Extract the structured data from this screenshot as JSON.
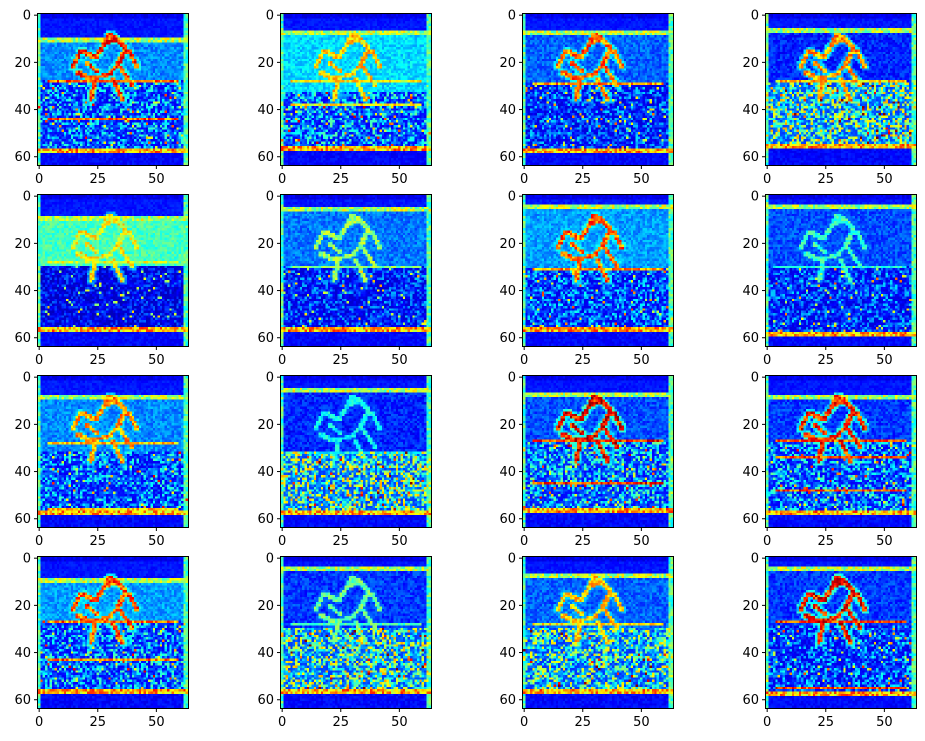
{
  "chart_data": {
    "type": "heatmap",
    "description_grid": {
      "rows": 4,
      "cols": 4
    },
    "image_shape": [
      64,
      64
    ],
    "colormap": "jet",
    "grid": false,
    "xlim": [
      0,
      63
    ],
    "ylim": [
      63,
      0
    ],
    "xticks": [
      0,
      25,
      50
    ],
    "yticks": [
      0,
      20,
      40,
      60
    ],
    "xtick_labels": [
      "0",
      "25",
      "50"
    ],
    "ytick_labels": [
      "0",
      "20",
      "40",
      "60"
    ],
    "panels": [
      {
        "id": 1,
        "variant": 0,
        "horizon": 28,
        "seed": 11
      },
      {
        "id": 2,
        "variant": 1,
        "horizon": 33,
        "seed": 22
      },
      {
        "id": 3,
        "variant": 2,
        "horizon": 29,
        "seed": 33
      },
      {
        "id": 4,
        "variant": 3,
        "horizon": 29,
        "seed": 44
      },
      {
        "id": 5,
        "variant": 4,
        "horizon": 30,
        "seed": 55
      },
      {
        "id": 6,
        "variant": 5,
        "horizon": 30,
        "seed": 66
      },
      {
        "id": 7,
        "variant": 6,
        "horizon": 31,
        "seed": 77
      },
      {
        "id": 8,
        "variant": 7,
        "horizon": 30,
        "seed": 88
      },
      {
        "id": 9,
        "variant": 8,
        "horizon": 32,
        "seed": 99
      },
      {
        "id": 10,
        "variant": 9,
        "horizon": 32,
        "seed": 110
      },
      {
        "id": 11,
        "variant": 10,
        "horizon": 28,
        "seed": 121
      },
      {
        "id": 12,
        "variant": 11,
        "horizon": 28,
        "seed": 132
      },
      {
        "id": 13,
        "variant": 12,
        "horizon": 27,
        "seed": 143
      },
      {
        "id": 14,
        "variant": 13,
        "horizon": 30,
        "seed": 154
      },
      {
        "id": 15,
        "variant": 14,
        "horizon": 30,
        "seed": 165
      },
      {
        "id": 16,
        "variant": 15,
        "horizon": 29,
        "seed": 176
      }
    ]
  }
}
